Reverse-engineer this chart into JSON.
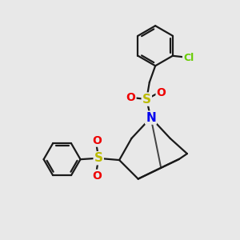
{
  "bg_color": "#e8e8e8",
  "bond_color": "#1a1a1a",
  "bond_width": 1.6,
  "atom_colors": {
    "N": "#0000ee",
    "S": "#bbbb00",
    "O": "#ee0000",
    "Cl": "#66cc00",
    "C": "#1a1a1a"
  },
  "figsize": [
    3.0,
    3.0
  ],
  "dpi": 100,
  "xlim": [
    0,
    10
  ],
  "ylim": [
    0,
    10
  ]
}
